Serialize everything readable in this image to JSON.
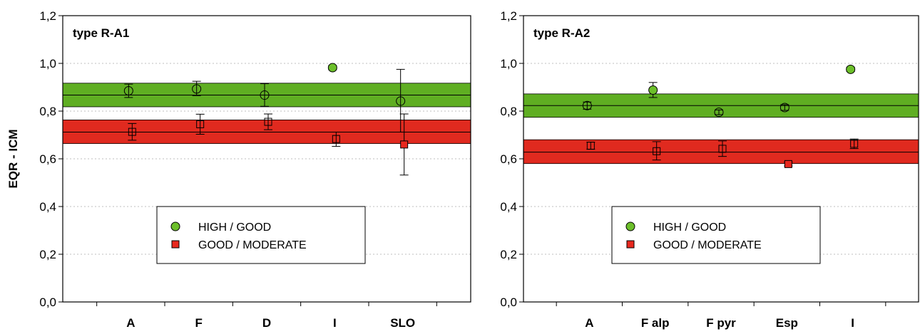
{
  "colors": {
    "high_good_fill": "#6cbf2a",
    "high_good_band": "#5fae22",
    "good_moderate_fill": "#e8281e",
    "good_moderate_band": "#e02a1f",
    "line": "#000000",
    "grid": "#bfbfbf"
  },
  "y_axis_label": "EQR - ICM",
  "legend": {
    "high_good": "HIGH / GOOD",
    "good_moderate": "GOOD / MODERATE"
  },
  "chart_data": [
    {
      "type": "scatter",
      "title": "type R-A1",
      "ylabel": "EQR - ICM",
      "ylim": [
        0,
        1.2
      ],
      "yticks": [
        "0,0",
        "0,2",
        "0,4",
        "0,6",
        "0,8",
        "1,0",
        "1,2"
      ],
      "grid": true,
      "legend_position": "bottom-center",
      "categories": [
        "A",
        "F",
        "D",
        "I",
        "SLO"
      ],
      "bands": {
        "high_good": {
          "mean": 0.867,
          "lower": 0.818,
          "upper": 0.917
        },
        "good_moderate": {
          "mean": 0.712,
          "lower": 0.664,
          "upper": 0.763
        }
      },
      "series": [
        {
          "name": "HIGH / GOOD",
          "marker": "circle",
          "values": [
            0.885,
            0.893,
            0.867,
            0.982,
            0.842
          ],
          "err_low": [
            0.857,
            0.865,
            0.82,
            0.973,
            0.712
          ],
          "err_high": [
            0.913,
            0.925,
            0.915,
            0.991,
            0.975
          ],
          "filled": [
            false,
            false,
            false,
            true,
            false
          ]
        },
        {
          "name": "GOOD / MODERATE",
          "marker": "square",
          "values": [
            0.713,
            0.745,
            0.755,
            0.683,
            0.66
          ],
          "err_low": [
            0.678,
            0.703,
            0.722,
            0.652,
            0.532
          ],
          "err_high": [
            0.748,
            0.787,
            0.788,
            0.712,
            0.788
          ],
          "filled": [
            false,
            false,
            false,
            false,
            true
          ]
        }
      ]
    },
    {
      "type": "scatter",
      "title": "type R-A2",
      "ylabel": "",
      "ylim": [
        0,
        1.2
      ],
      "yticks": [
        "0,0",
        "0,2",
        "0,4",
        "0,6",
        "0,8",
        "1,0",
        "1,2"
      ],
      "grid": true,
      "legend_position": "bottom-center",
      "categories": [
        "A",
        "F alp",
        "F pyr",
        "Esp",
        "I"
      ],
      "bands": {
        "high_good": {
          "mean": 0.823,
          "lower": 0.774,
          "upper": 0.872
        },
        "good_moderate": {
          "mean": 0.628,
          "lower": 0.58,
          "upper": 0.68
        }
      },
      "series": [
        {
          "name": "HIGH / GOOD",
          "marker": "circle",
          "values": [
            0.823,
            0.888,
            0.795,
            0.815,
            0.975
          ],
          "err_low": [
            0.808,
            0.857,
            0.785,
            0.803,
            0.966
          ],
          "err_high": [
            0.838,
            0.92,
            0.805,
            0.827,
            0.984
          ],
          "filled": [
            false,
            true,
            false,
            false,
            true
          ]
        },
        {
          "name": "GOOD / MODERATE",
          "marker": "square",
          "values": [
            0.655,
            0.632,
            0.642,
            0.578,
            0.663
          ],
          "err_low": [
            0.64,
            0.595,
            0.61,
            0.57,
            0.643
          ],
          "err_high": [
            0.67,
            0.672,
            0.675,
            0.586,
            0.683
          ],
          "filled": [
            false,
            false,
            false,
            true,
            false
          ]
        }
      ]
    }
  ]
}
